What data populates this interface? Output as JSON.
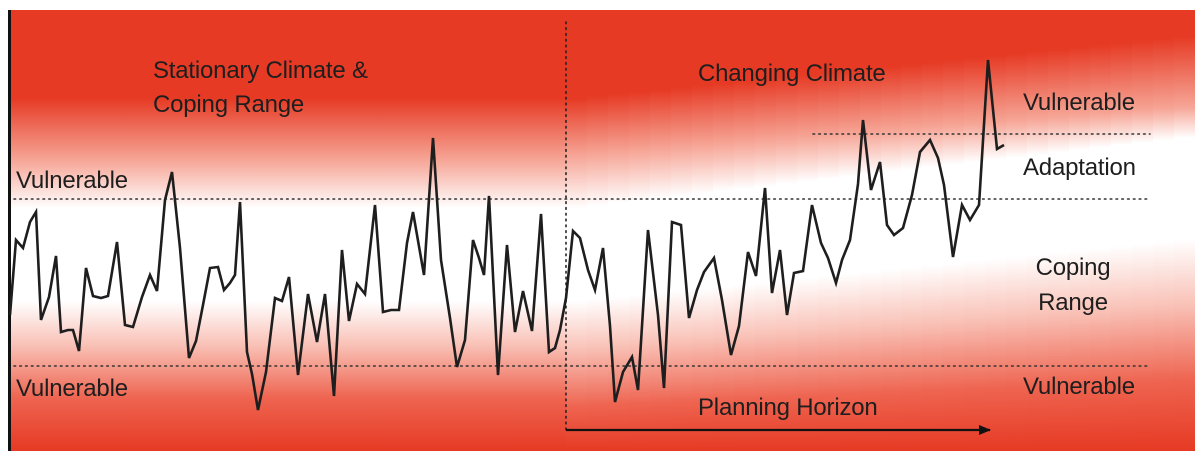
{
  "labels": {
    "stationary_line1": "Stationary Climate &",
    "stationary_line2": "Coping Range",
    "changing_climate": "Changing Climate",
    "vulnerable_upper_left": "Vulnerable",
    "vulnerable_lower_left": "Vulnerable",
    "vulnerable_upper_right": "Vulnerable",
    "adaptation": "Adaptation",
    "coping_line1": "Coping",
    "coping_line2": "Range",
    "vulnerable_lower_right": "Vulnerable",
    "planning_horizon": "Planning Horizon"
  },
  "colors": {
    "red": "#e63a24",
    "white": "#ffffff",
    "line": "#1e1e1e"
  },
  "series": {
    "description_free_values": [
      0.4,
      0.54,
      0.53,
      0.56,
      0.48,
      0.46,
      0.45,
      0.43,
      0.39,
      0.34,
      0.41,
      0.44,
      0.47,
      0.5,
      0.37,
      0.36,
      0.4,
      0.47,
      0.42,
      0.45,
      0.55,
      0.6,
      0.33,
      0.42,
      0.4,
      0.38,
      0.34,
      0.36,
      0.49,
      0.48,
      0.44,
      0.41,
      0.43,
      0.49,
      0.46,
      0.47,
      0.5,
      0.52,
      0.55,
      0.6,
      0.62,
      0.58,
      0.55,
      0.52,
      0.63,
      0.66,
      0.61,
      0.64,
      0.71,
      0.68,
      0.66,
      0.63,
      0.7,
      0.74,
      0.8,
      0.82,
      0.77,
      0.73,
      0.78,
      0.81,
      0.85,
      0.83,
      0.8,
      0.84
    ]
  }
}
